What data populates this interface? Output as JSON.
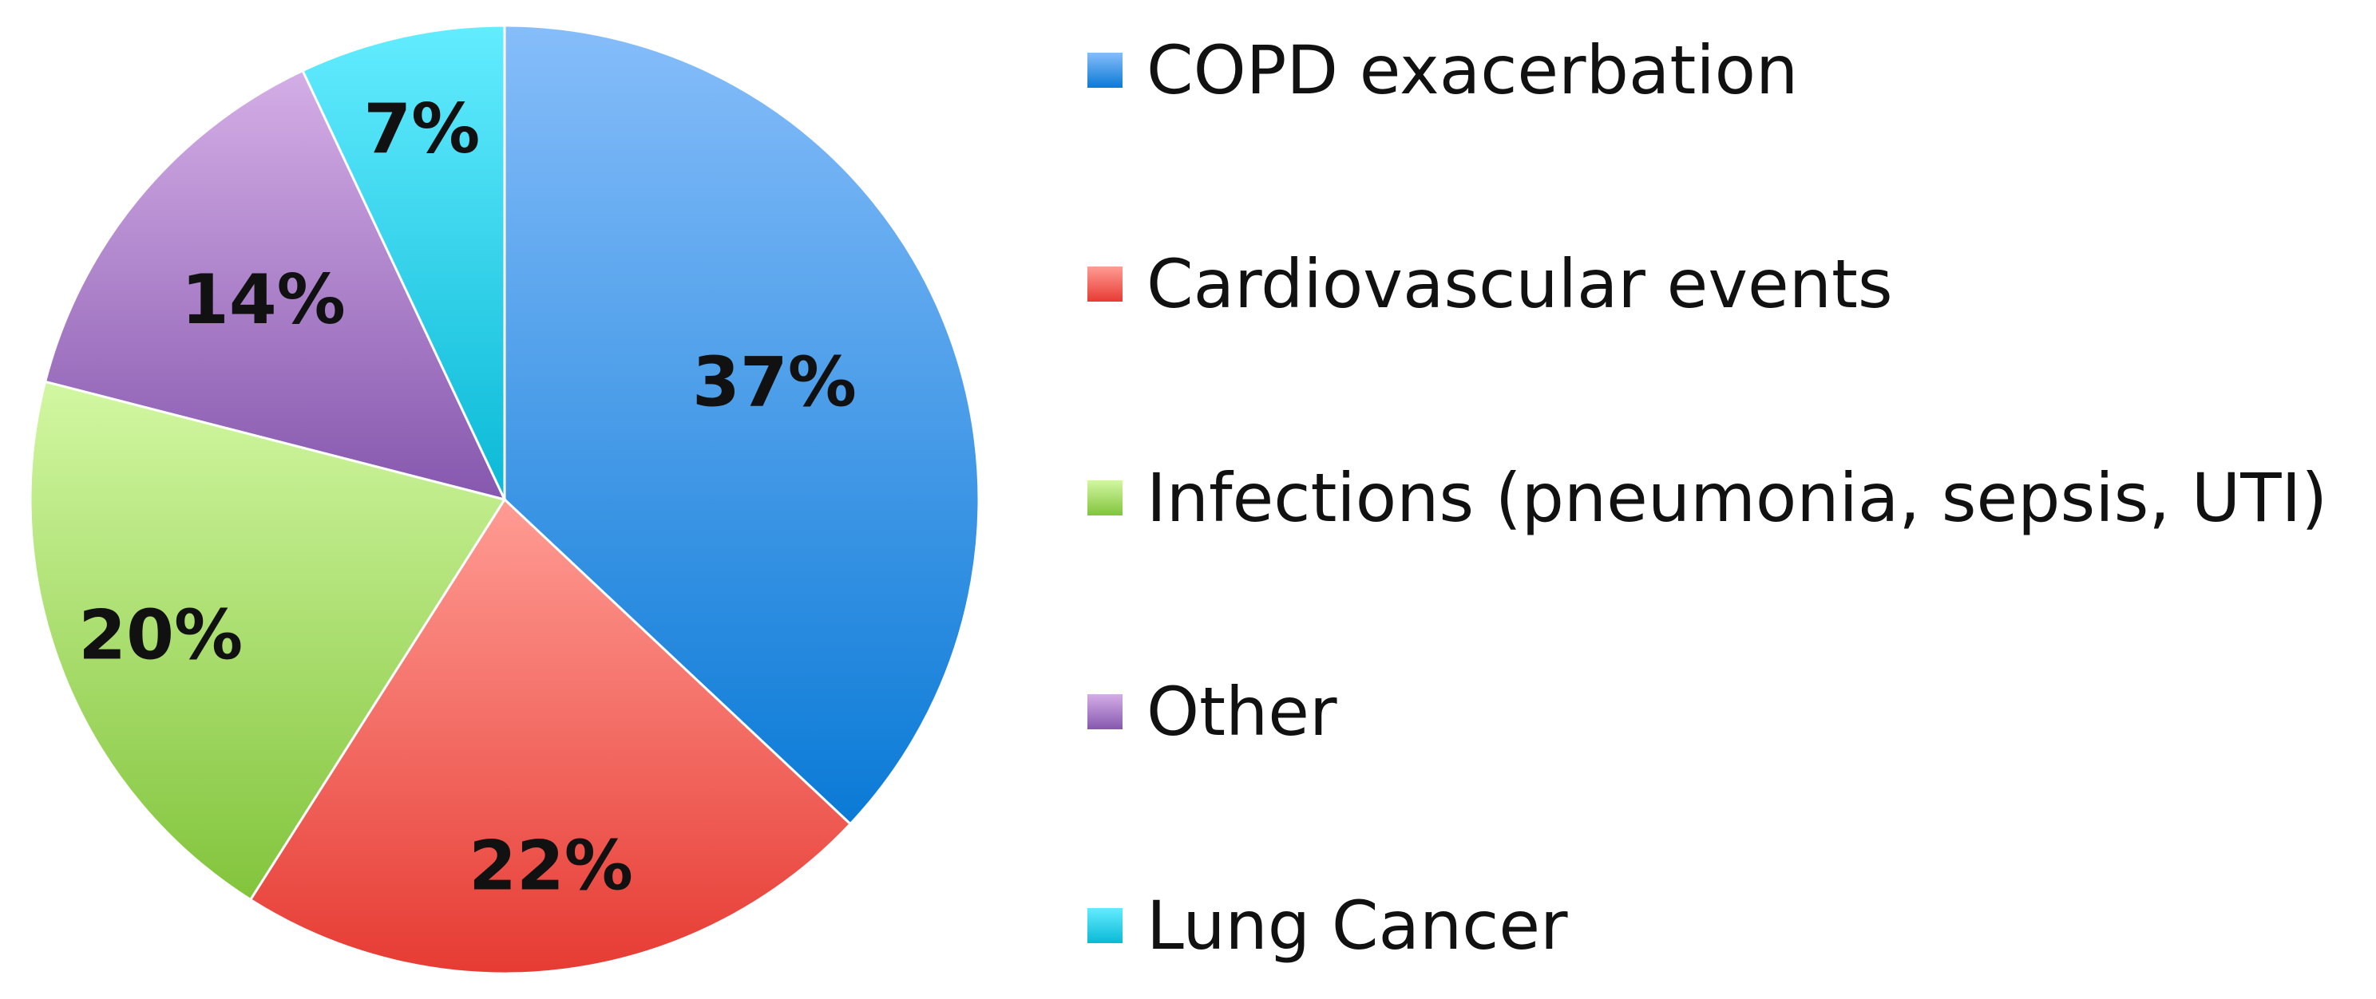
{
  "chart_data": {
    "type": "pie",
    "title": "",
    "legend_position": "right",
    "slices": [
      {
        "label": "COPD exacerbation",
        "value": 37,
        "display": "37%",
        "color_light": "#86bdfa",
        "color_dark": "#0a7ad6"
      },
      {
        "label": "Cardiovascular events",
        "value": 22,
        "display": "22%",
        "color_light": "#ff9c94",
        "color_dark": "#e63b33"
      },
      {
        "label": "Infections (pneumonia, sepsis, UTI)",
        "value": 20,
        "display": "20%",
        "color_light": "#d2f7a2",
        "color_dark": "#82c43c"
      },
      {
        "label": "Other",
        "value": 14,
        "display": "14%",
        "color_light": "#d4aee6",
        "color_dark": "#8657ae"
      },
      {
        "label": "Lung Cancer",
        "value": 7,
        "display": "7%",
        "color_light": "#63ecff",
        "color_dark": "#0ab9d6"
      }
    ]
  }
}
